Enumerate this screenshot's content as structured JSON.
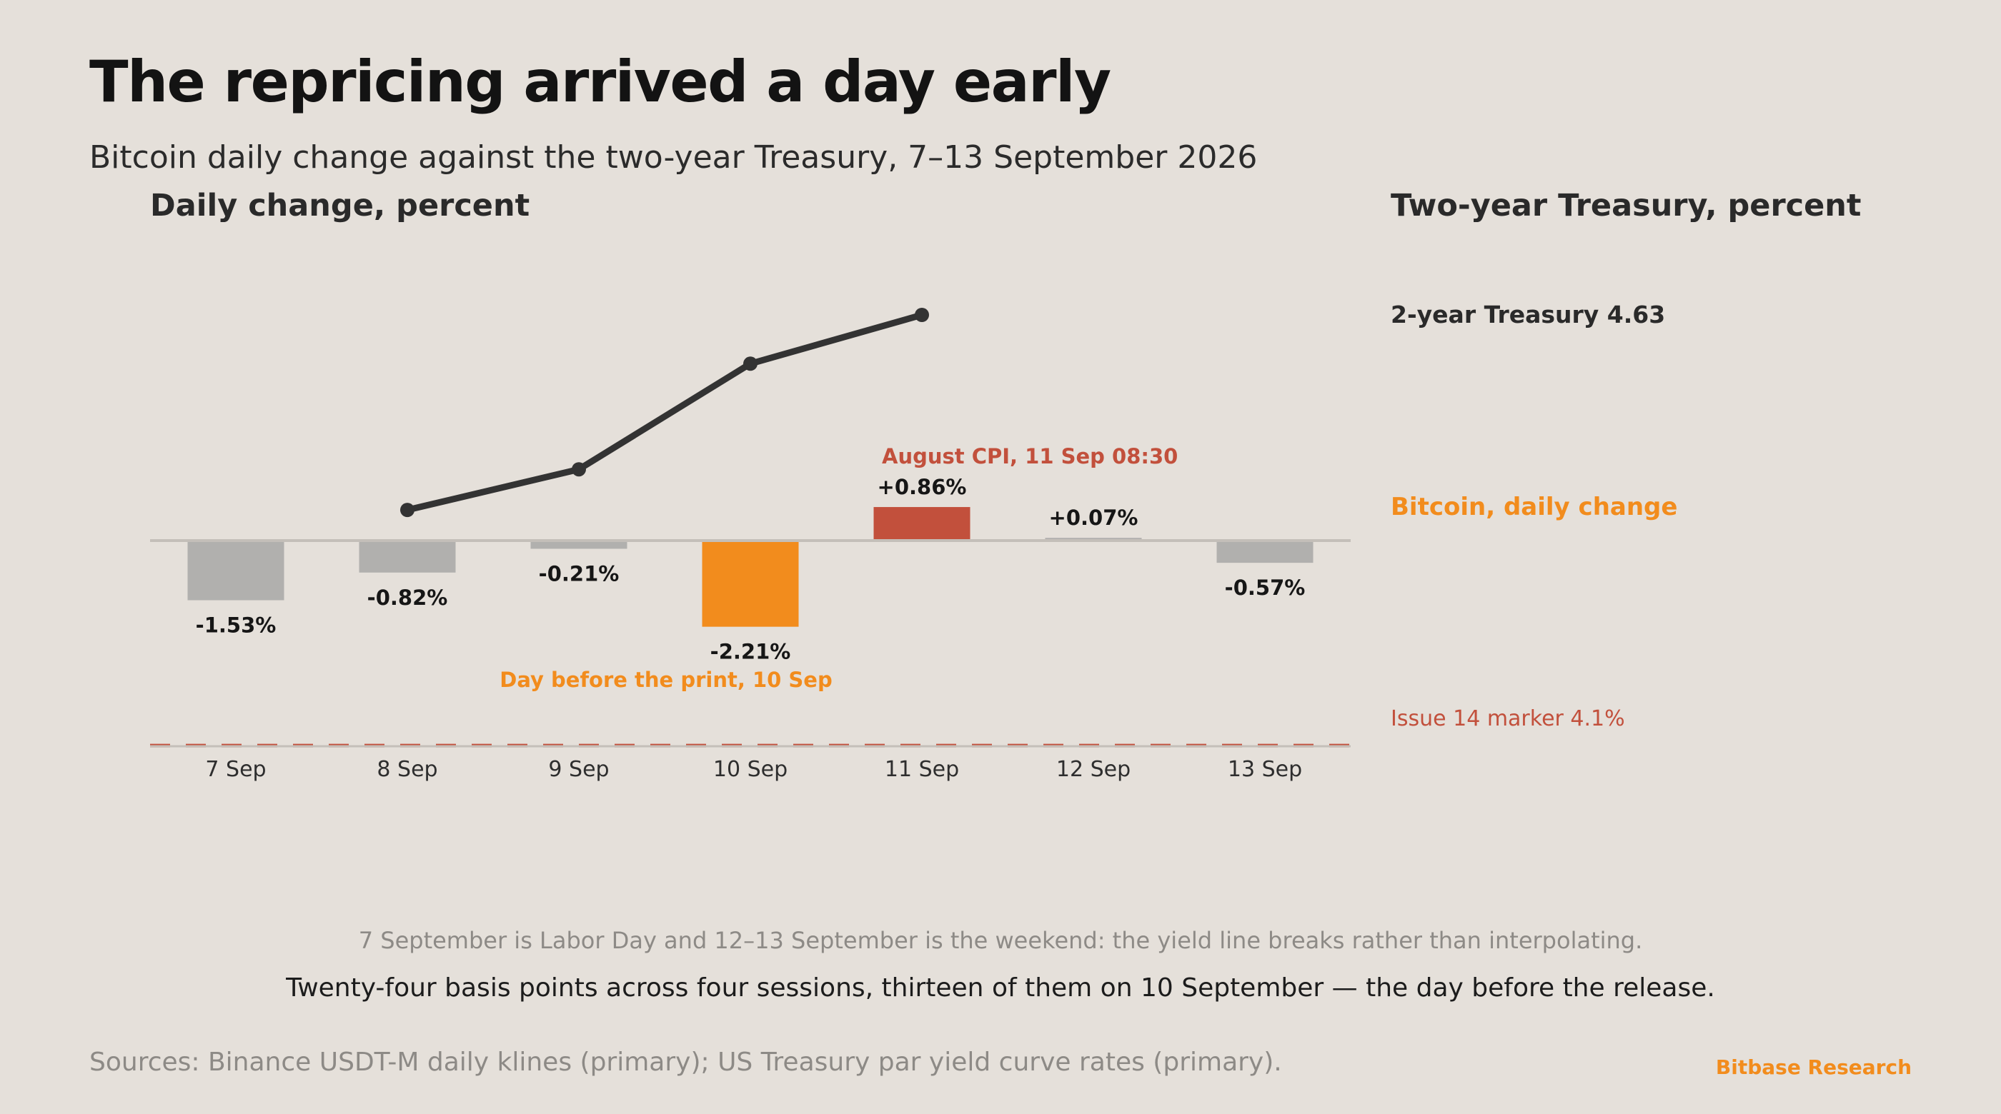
{
  "title": "The repricing arrived a day early",
  "subtitle": "Bitcoin daily change against the two-year Treasury, 7–13 September 2026",
  "colors": {
    "background": "#e5e0da",
    "bar_default": "#b1b0ae",
    "bar_highlight_orange": "#f28c1d",
    "bar_highlight_red": "#c2503c",
    "treasury_line": "#333333",
    "marker_line": "#c2503c",
    "text_dark": "#161616",
    "text_muted": "#8d8a86"
  },
  "chart_data": {
    "type": "bar",
    "left_axis_title": "Daily change, percent",
    "right_axis_title": "Two-year Treasury, percent",
    "categories": [
      "7 Sep",
      "8 Sep",
      "9 Sep",
      "10 Sep",
      "11 Sep",
      "12 Sep",
      "13 Sep"
    ],
    "series": [
      {
        "name": "Bitcoin, daily change",
        "type": "bar",
        "values": [
          -1.53,
          -0.82,
          -0.21,
          -2.21,
          0.86,
          0.07,
          -0.57
        ],
        "labels": [
          "-1.53%",
          "-0.82%",
          "-0.21%",
          "-2.21%",
          "+0.86%",
          "+0.07%",
          "-0.57%"
        ],
        "highlight": [
          null,
          null,
          null,
          "orange",
          "red",
          null,
          null
        ]
      },
      {
        "name": "2-year Treasury",
        "type": "line",
        "values": [
          null,
          4.39,
          4.44,
          4.57,
          4.63,
          null,
          null
        ],
        "end_label": "2-year Treasury 4.63"
      }
    ],
    "reference_line": {
      "value": 4.1,
      "label": "Issue 14 marker 4.1%"
    },
    "annotations": [
      {
        "category": "11 Sep",
        "text": "August CPI, 11 Sep 08:30",
        "color": "red"
      },
      {
        "category": "10 Sep",
        "text": "Day before the print, 10 Sep",
        "color": "orange"
      }
    ],
    "bar_legend_label": "Bitcoin, daily change"
  },
  "footnote": "7 September is Labor Day and 12–13 September is the weekend: the yield line breaks rather than interpolating.",
  "conclusion": "Twenty-four basis points across four sessions, thirteen of them on 10 September — the day before the release.",
  "sources": "Sources: Binance USDT-M daily klines (primary); US Treasury par yield curve rates (primary).",
  "brand": "Bitbase Research"
}
